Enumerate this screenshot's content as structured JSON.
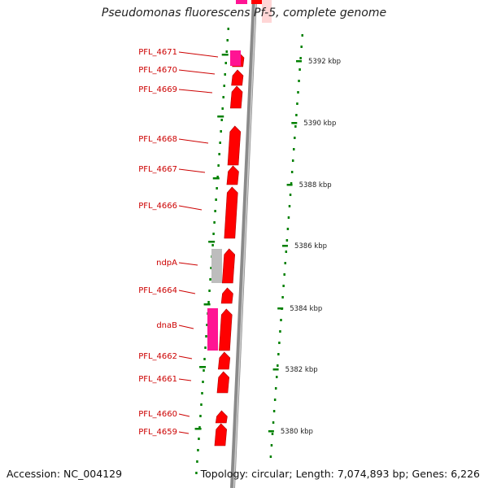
{
  "title": "Pseudomonas fluorescens Pf-5, complete genome",
  "accession": "Accession: NC_004129",
  "topology": "Topology: circular; Length: 7,074,893 bp; Genes: 6,226",
  "colors": {
    "backbone": "#8a8a8a",
    "gene_red": "#ff0000",
    "gene_pink": "#ff1493",
    "gene_grey": "#bdbdbd",
    "label_red": "#cc0000",
    "tick_green": "#008000"
  },
  "scale_ticks": [
    "5392 kbp",
    "5390 kbp",
    "5388 kbp",
    "5386 kbp",
    "5384 kbp",
    "5382 kbp",
    "5380 kbp"
  ],
  "genes": [
    {
      "name": "PFL_4671",
      "strand": "+",
      "color": "gene_red",
      "track": "inner"
    },
    {
      "name": "PFL_4670",
      "strand": "+",
      "color": "gene_red",
      "track": "inner"
    },
    {
      "name": "PFL_4669",
      "strand": "+",
      "color": "gene_red",
      "track": "inner"
    },
    {
      "name": "PFL_4668",
      "strand": "+",
      "color": "gene_red",
      "track": "inner"
    },
    {
      "name": "PFL_4667",
      "strand": "+",
      "color": "gene_red",
      "track": "inner"
    },
    {
      "name": "PFL_4666",
      "strand": "+",
      "color": "gene_red",
      "track": "inner"
    },
    {
      "name": "ndpA",
      "strand": "+",
      "color": "gene_red",
      "track": "inner"
    },
    {
      "name": "PFL_4664",
      "strand": "+",
      "color": "gene_red",
      "track": "inner"
    },
    {
      "name": "dnaB",
      "strand": "+",
      "color": "gene_red",
      "track": "inner"
    },
    {
      "name": "PFL_4662",
      "strand": "+",
      "color": "gene_red",
      "track": "inner"
    },
    {
      "name": "PFL_4661",
      "strand": "+",
      "color": "gene_red",
      "track": "inner"
    },
    {
      "name": "PFL_4660",
      "strand": "+",
      "color": "gene_red",
      "track": "inner"
    },
    {
      "name": "PFL_4659",
      "strand": "+",
      "color": "gene_red",
      "track": "inner"
    }
  ]
}
